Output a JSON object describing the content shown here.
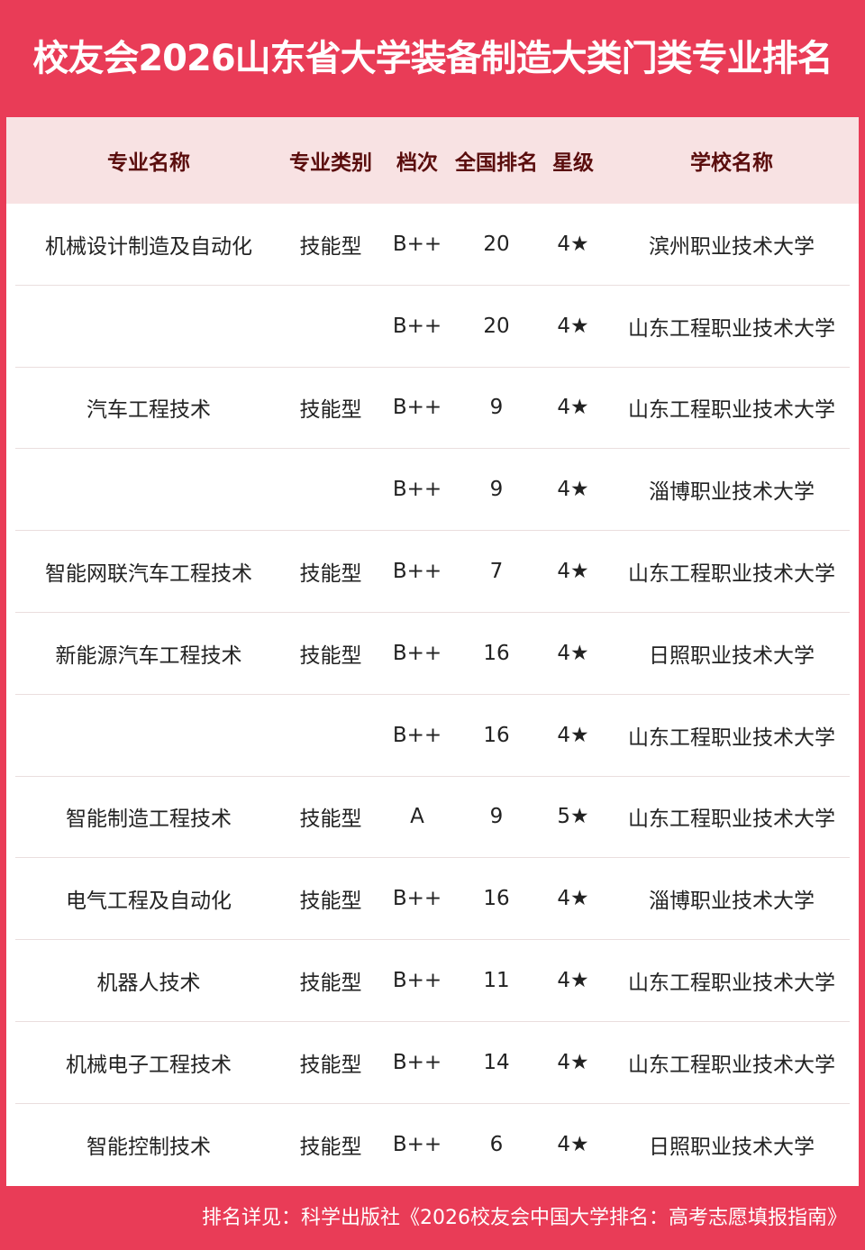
{
  "title": "校友会2026山东省大学装备制造大类门类专业排名",
  "headers": [
    "专业名称",
    "专业类别",
    "档次",
    "全国排名",
    "星级",
    "学校名称"
  ],
  "rows": [
    [
      "机械设计制造及自动化",
      "技能型",
      "B++",
      "20",
      "4★",
      "滨州职业技术大学"
    ],
    [
      "",
      "",
      "B++",
      "20",
      "4★",
      "山东工程职业技术大学"
    ],
    [
      "汽车工程技术",
      "技能型",
      "B++",
      "9",
      "4★",
      "山东工程职业技术大学"
    ],
    [
      "",
      "",
      "B++",
      "9",
      "4★",
      "淄博职业技术大学"
    ],
    [
      "智能网联汽车工程技术",
      "技能型",
      "B++",
      "7",
      "4★",
      "山东工程职业技术大学"
    ],
    [
      "新能源汽车工程技术",
      "技能型",
      "B++",
      "16",
      "4★",
      "日照职业技术大学"
    ],
    [
      "",
      "",
      "B++",
      "16",
      "4★",
      "山东工程职业技术大学"
    ],
    [
      "智能制造工程技术",
      "技能型",
      "A",
      "9",
      "5★",
      "山东工程职业技术大学"
    ],
    [
      "电气工程及自动化",
      "技能型",
      "B++",
      "16",
      "4★",
      "淄博职业技术大学"
    ],
    [
      "机器人技术",
      "技能型",
      "B++",
      "11",
      "4★",
      "山东工程职业技术大学"
    ],
    [
      "机械电子工程技术",
      "技能型",
      "B++",
      "14",
      "4★",
      "山东工程职业技术大学"
    ],
    [
      "智能控制技术",
      "技能型",
      "B++",
      "6",
      "4★",
      "日照职业技术大学"
    ]
  ],
  "footer": "排名详见：科学出版社《2026校友会中国大学排名：高考志愿填报指南》",
  "colors": {
    "brand": "#e93c57",
    "header_bg": "#f8e2e3",
    "header_text": "#5a0d0d"
  }
}
